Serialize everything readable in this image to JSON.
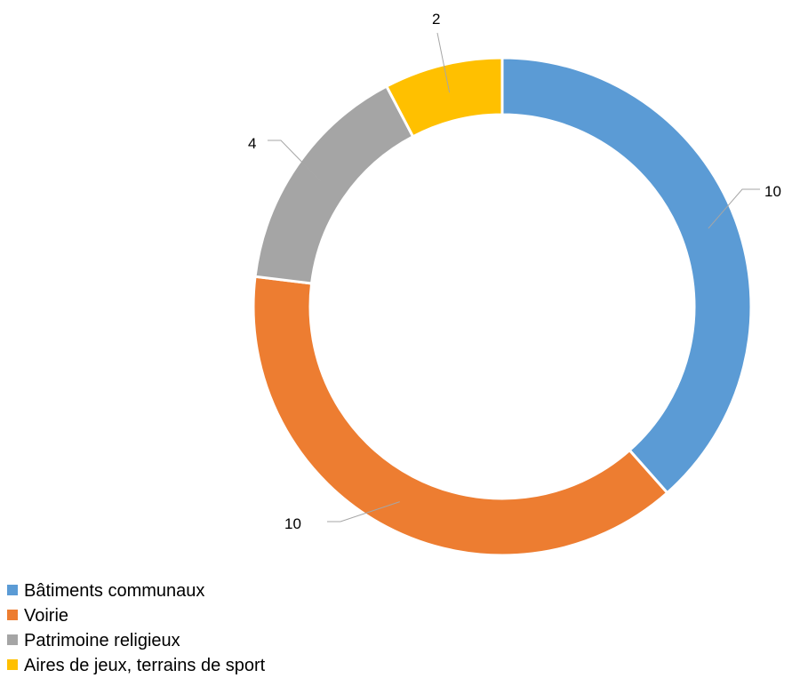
{
  "chart_data": {
    "type": "pie",
    "variant": "donut",
    "title": "",
    "categories": [
      "Bâtiments communaux",
      "Voirie",
      "Patrimoine religieux",
      "Aires de jeux, terrains de sport"
    ],
    "values": [
      10,
      10,
      4,
      2
    ],
    "data_labels": [
      "10",
      "10",
      "4",
      "2"
    ],
    "colors": [
      "#5B9BD5",
      "#ED7D31",
      "#A5A5A5",
      "#FFC000"
    ],
    "legend_position": "bottom-left",
    "start_angle": "top"
  }
}
